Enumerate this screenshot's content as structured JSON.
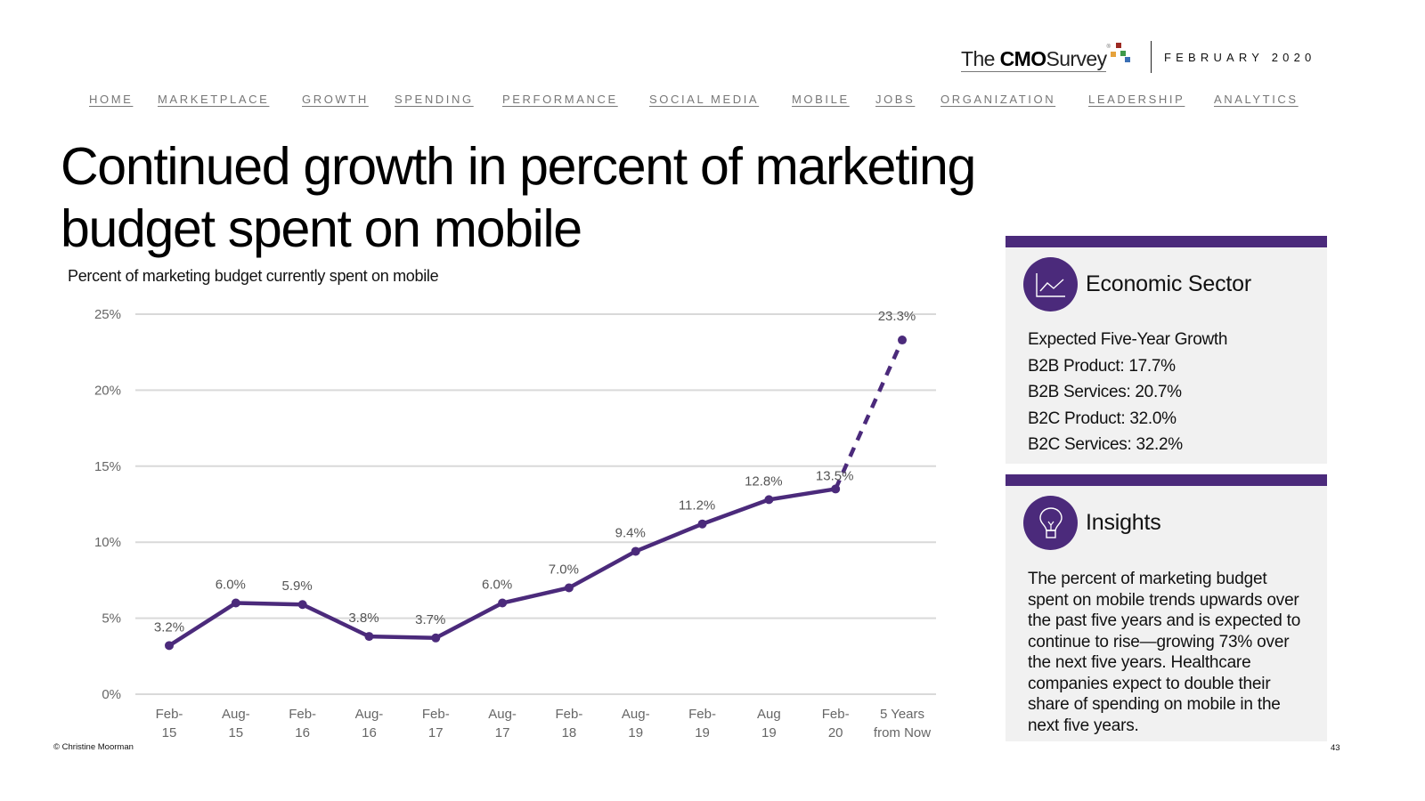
{
  "header": {
    "logo": {
      "prefix": "The",
      "brand": "CMO",
      "suffix": "Survey",
      "registered": "®"
    },
    "logo_dot_colors": [
      "#9c2a22",
      "#e6a23c",
      "#3f9a4a",
      "#3a6fb5"
    ],
    "report_date": "FEBRUARY 2020"
  },
  "nav": {
    "items": [
      {
        "label": "HOME"
      },
      {
        "label": "MARKETPLACE"
      },
      {
        "label": "GROWTH"
      },
      {
        "label": "SPENDING"
      },
      {
        "label": "PERFORMANCE"
      },
      {
        "label": "SOCIAL MEDIA"
      },
      {
        "label": "MOBILE"
      },
      {
        "label": "JOBS"
      },
      {
        "label": "ORGANIZATION"
      },
      {
        "label": "LEADERSHIP"
      },
      {
        "label": "ANALYTICS"
      }
    ]
  },
  "page": {
    "title_line1": "Continued growth in percent of marketing",
    "title_line2": "budget spent on mobile"
  },
  "colors": {
    "accent": "#4b2a7b",
    "gridline": "#d9d9d9",
    "panel_bg": "#f1f1f1"
  },
  "chart_data": {
    "type": "line",
    "title": "Percent of marketing budget currently spent on mobile",
    "xlabel": "",
    "ylabel": "",
    "ylim": [
      0,
      25
    ],
    "yticks": [
      0,
      5,
      10,
      15,
      20,
      25
    ],
    "ytick_labels": [
      "0%",
      "5%",
      "10%",
      "15%",
      "20%",
      "25%"
    ],
    "grid": true,
    "legend": "none",
    "categories": [
      [
        "Feb-",
        "15"
      ],
      [
        "Aug-",
        "15"
      ],
      [
        "Feb-",
        "16"
      ],
      [
        "Aug-",
        "16"
      ],
      [
        "Feb-",
        "17"
      ],
      [
        "Aug-",
        "17"
      ],
      [
        "Feb-",
        "18"
      ],
      [
        "Aug-",
        "19"
      ],
      [
        "Feb-",
        "19"
      ],
      [
        "Aug",
        "19"
      ],
      [
        "Feb-",
        "20"
      ],
      [
        "5 Years",
        "from Now"
      ]
    ],
    "series": [
      {
        "name": "Percent of marketing budget spent on mobile",
        "values": [
          3.2,
          6.0,
          5.9,
          3.8,
          3.7,
          6.0,
          7.0,
          9.4,
          11.2,
          12.8,
          13.5,
          23.3
        ],
        "labels": [
          "3.2%",
          "6.0%",
          "5.9%",
          "3.8%",
          "3.7%",
          "6.0%",
          "7.0%",
          "9.4%",
          "11.2%",
          "12.8%",
          "13.5%",
          "23.3%"
        ],
        "projected_from_index": 10,
        "color": "#4b2a7b"
      }
    ]
  },
  "economic_sector": {
    "heading": "Economic Sector",
    "icon": "line-chart-icon",
    "lines": [
      "Expected Five-Year Growth",
      "B2B Product: 17.7%",
      "B2B Services: 20.7%",
      "B2C Product: 32.0%",
      "B2C Services: 32.2%"
    ]
  },
  "insights": {
    "heading": "Insights",
    "icon": "lightbulb-icon",
    "text": "The percent of marketing budget spent on mobile trends upwards over the past five years and is expected to continue to rise—growing 73% over the next five years. Healthcare companies expect to double their share of spending on mobile in the next five years."
  },
  "footer": {
    "copyright": "© Christine Moorman",
    "page_number": "43"
  }
}
